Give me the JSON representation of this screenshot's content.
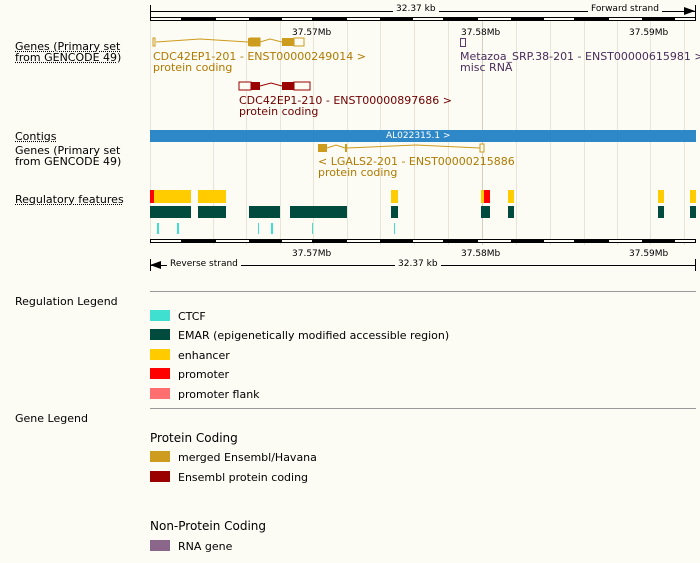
{
  "ruler": {
    "top_span": "32.37 kb",
    "top_strand": "Forward strand",
    "bottom_span": "32.37 kb",
    "bottom_strand": "Reverse strand",
    "ticks_top": [
      "37.57Mb",
      "37.58Mb",
      "37.59Mb"
    ],
    "ticks_bottom": [
      "37.57Mb",
      "37.58Mb",
      "37.59Mb"
    ]
  },
  "tracks": {
    "genes_top_label": "Genes (Primary set from GENCODE 49)",
    "contigs_label": "Contigs",
    "genes_bottom_label": "Genes (Primary set from GENCODE 49)",
    "regulatory_label": "Regulatory features"
  },
  "genes": {
    "g1_name": "CDC42EP1-201 - ENST00000249014 >",
    "g1_type": "protein coding",
    "g2_name": "Metazoa_SRP.38-201 - ENST00000615981 >",
    "g2_type": "misc RNA",
    "g3_name": "CDC42EP1-210 - ENST00000897686 >",
    "g3_type": "protein coding",
    "g4_name": "< LGALS2-201 - ENST00000215886",
    "g4_type": "protein coding"
  },
  "contig": {
    "name": "AL022315.1 >"
  },
  "regulation_legend": {
    "title": "Regulation Legend",
    "items": [
      {
        "label": "CTCF",
        "color": "#40e0d0"
      },
      {
        "label": "EMAR (epigenetically modified accessible region)",
        "color": "#004b3d"
      },
      {
        "label": "enhancer",
        "color": "#ffcc00"
      },
      {
        "label": "promoter",
        "color": "#ff0000"
      },
      {
        "label": "promoter flank",
        "color": "#ff6f6f"
      }
    ]
  },
  "gene_legend": {
    "title": "Gene Legend",
    "protein_coding_title": "Protein Coding",
    "protein_coding_items": [
      {
        "label": "merged Ensembl/Havana",
        "color": "#cd9b1d"
      },
      {
        "label": "Ensembl protein coding",
        "color": "#9a0000"
      }
    ],
    "non_protein_title": "Non-Protein Coding",
    "non_protein_items": [
      {
        "label": "RNA gene",
        "color": "#8b668b"
      }
    ]
  }
}
